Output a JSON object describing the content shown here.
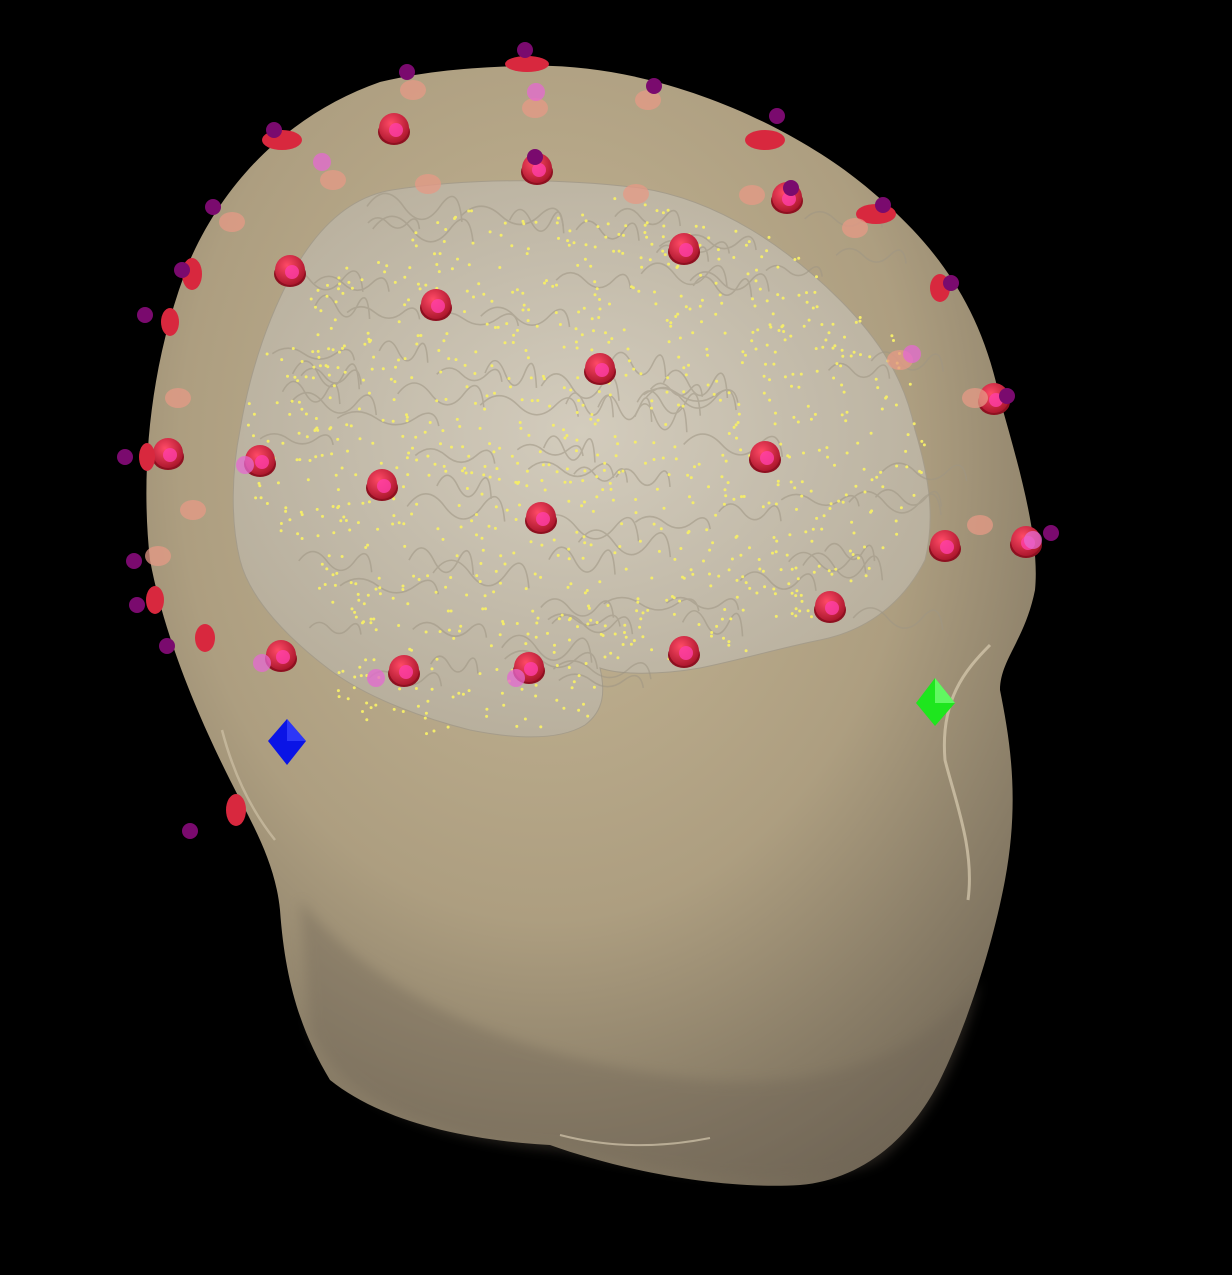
{
  "scene": {
    "background_color": "#000000",
    "head_color": "#b9aa8a",
    "head_shadow_color": "#6e6454",
    "brain_color": "#cbc4b6",
    "source_point_color": "#f4ec6a",
    "electrode_color": "#d8283e",
    "electrode_back_color": "#e59a86",
    "sensor_marker_color": "#7a0a6e",
    "contact_color": "#ff3fa8",
    "fiducial_left_color": "#0a14e6",
    "fiducial_right_color": "#1ee61e"
  },
  "icons": [
    "head-surface-icon",
    "cortex-surface-icon",
    "electrode-icon",
    "fiducial-icon"
  ]
}
